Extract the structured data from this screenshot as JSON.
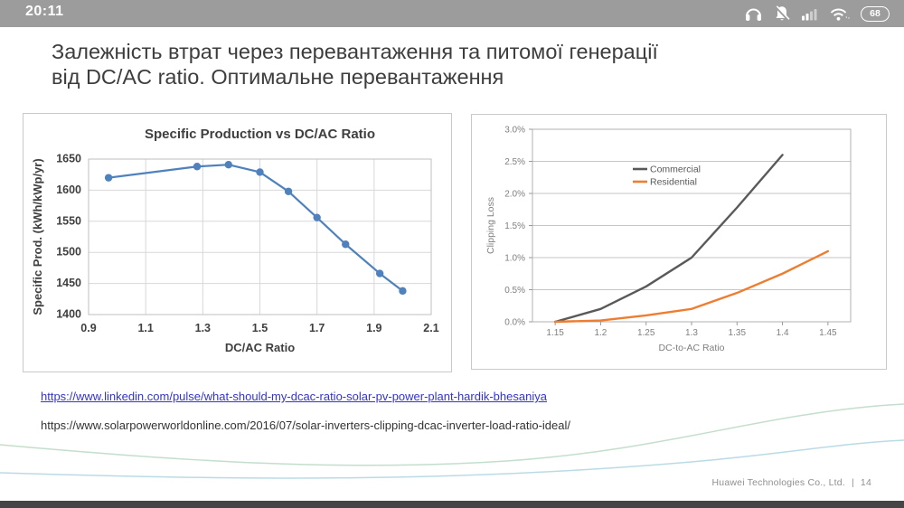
{
  "status_bar": {
    "time": "20:11",
    "battery_percent": "68",
    "bg_color": "#9c9c9c",
    "icons": [
      "headphones-icon",
      "bell-muted-icon",
      "signal-strength-icon",
      "wifi-icon",
      "battery-icon"
    ]
  },
  "slide": {
    "title": {
      "line1": "Залежність втрат через перевантаження та питомої генерації",
      "line2": "від DC/AC ratio. Оптимальне перевантаження"
    },
    "links": [
      {
        "text": "https://www.linkedin.com/pulse/what-should-my-dcac-ratio-solar-pv-power-plant-hardik-bhesaniya",
        "type": "hyperlink",
        "color": "#3434cc"
      },
      {
        "text": "https://www.solarpowerworldonline.com/2016/07/solar-inverters-clipping-dcac-inverter-load-ratio-ideal/",
        "type": "plain",
        "color": "#333333"
      }
    ],
    "footer": {
      "company": "Huawei Technologies Co., Ltd.",
      "separator": "|",
      "page": "14"
    }
  },
  "chart_data": [
    {
      "type": "line",
      "title": "Specific Production vs DC/AC Ratio",
      "xlabel": "DC/AC Ratio",
      "ylabel": "Specific Prod. (kWh/kWp/yr)",
      "xlim": [
        0.9,
        2.1
      ],
      "ylim": [
        1400,
        1650
      ],
      "x_ticks": [
        0.9,
        1.1,
        1.3,
        1.5,
        1.7,
        1.9,
        2.1
      ],
      "y_ticks": [
        1400,
        1450,
        1500,
        1550,
        1600,
        1650
      ],
      "grid": "both",
      "legend": null,
      "series": [
        {
          "name": "Specific Production",
          "color": "#4f81bd",
          "marker": "circle",
          "points": [
            [
              0.97,
              1620
            ],
            [
              1.28,
              1638
            ],
            [
              1.39,
              1641
            ],
            [
              1.5,
              1629
            ],
            [
              1.6,
              1598
            ],
            [
              1.7,
              1556
            ],
            [
              1.8,
              1513
            ],
            [
              1.92,
              1466
            ],
            [
              2.0,
              1438
            ]
          ]
        }
      ]
    },
    {
      "type": "line",
      "title": "",
      "xlabel": "DC-to-AC Ratio",
      "ylabel": "Clipping Loss",
      "xlim": [
        1.125,
        1.475
      ],
      "ylim": [
        0,
        3
      ],
      "x_ticks": [
        1.15,
        1.2,
        1.25,
        1.3,
        1.35,
        1.4,
        1.45
      ],
      "y_ticks": [
        0,
        0.5,
        1,
        1.5,
        2,
        2.5,
        3
      ],
      "y_tick_format": "percent",
      "grid": "horizontal",
      "legend": {
        "position": "upper-middle",
        "entries": [
          "Commercial",
          "Residential"
        ]
      },
      "series": [
        {
          "name": "Commercial",
          "color": "#595959",
          "marker": "none",
          "points": [
            [
              1.15,
              0.0
            ],
            [
              1.2,
              0.2
            ],
            [
              1.25,
              0.55
            ],
            [
              1.3,
              1.0
            ],
            [
              1.35,
              1.78
            ],
            [
              1.4,
              2.6
            ]
          ]
        },
        {
          "name": "Residential",
          "color": "#ed7d31",
          "marker": "none",
          "points": [
            [
              1.15,
              0.0
            ],
            [
              1.2,
              0.02
            ],
            [
              1.25,
              0.1
            ],
            [
              1.3,
              0.2
            ],
            [
              1.35,
              0.45
            ],
            [
              1.4,
              0.75
            ],
            [
              1.45,
              1.1
            ]
          ]
        }
      ]
    }
  ]
}
